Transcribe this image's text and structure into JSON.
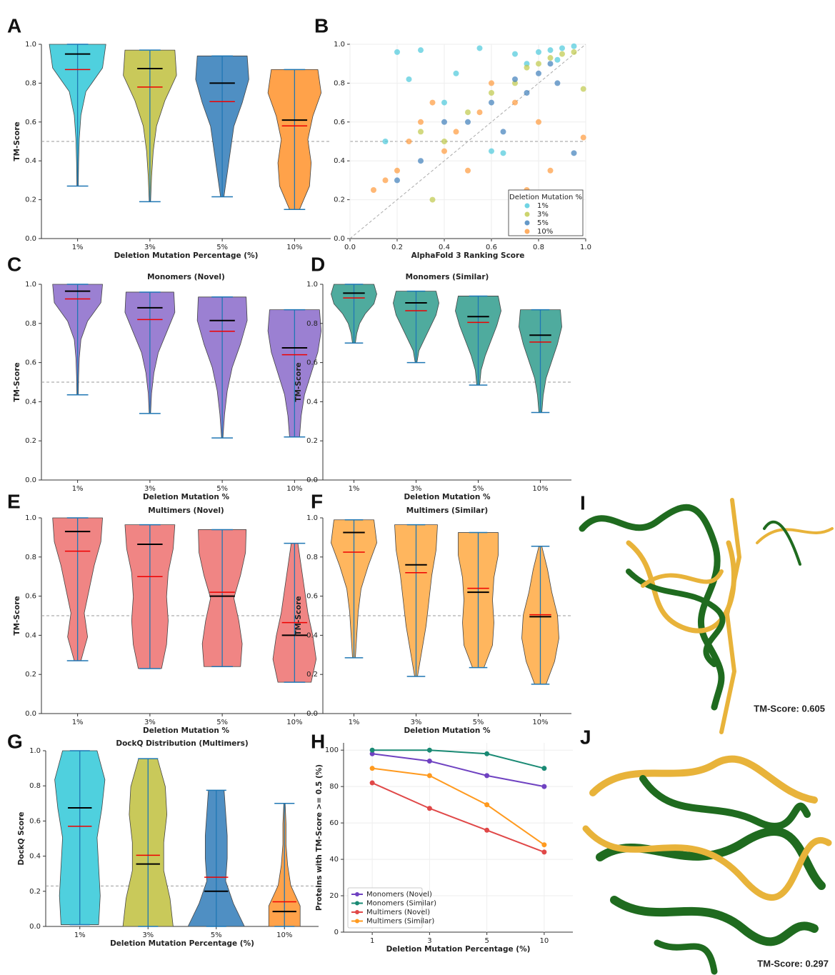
{
  "chart_data": [
    {
      "type": "violin",
      "panel_label": "A",
      "xlabel": "Deletion Mutation Percentage (%)",
      "ylabel": "TM-Score",
      "categories": [
        "1%",
        "3%",
        "5%",
        "10%"
      ],
      "colors": [
        "#4fd0de",
        "#c9c95a",
        "#4f8fc3",
        "#ffa24a"
      ],
      "min": [
        0.27,
        0.19,
        0.215,
        0.15
      ],
      "max": [
        1.0,
        0.97,
        0.94,
        0.87
      ],
      "median": [
        0.95,
        0.875,
        0.8,
        0.61
      ],
      "mean": [
        0.87,
        0.78,
        0.705,
        0.58
      ],
      "density": [
        [
          0.02,
          0.03,
          0.05,
          0.1,
          0.25,
          0.75,
          0.85
        ],
        [
          0.02,
          0.05,
          0.1,
          0.2,
          0.45,
          0.8,
          0.75
        ],
        [
          0.05,
          0.15,
          0.25,
          0.35,
          0.6,
          0.8,
          0.75
        ],
        [
          0.15,
          0.45,
          0.5,
          0.4,
          0.55,
          0.8,
          0.7
        ]
      ],
      "ylim": [
        0,
        1
      ],
      "yticks": [
        {
          "value": 0,
          "label": "0.0"
        },
        0.2,
        0.4,
        0.6,
        0.8,
        {
          "value": 1,
          "label": "1.0"
        }
      ],
      "hline": 0.5
    },
    {
      "type": "scatter",
      "panel_label": "B",
      "xlabel": "AlphaFold 3 Ranking Score",
      "legend_title": "Deletion Mutation %",
      "legend": "lower right",
      "grid": true,
      "hline": 0.5,
      "series": [
        {
          "name": "1%",
          "color": "#4cc9dc",
          "x": [
            0.9,
            0.85,
            0.95,
            0.8,
            0.7,
            0.55,
            0.3,
            0.2,
            0.6,
            0.65,
            0.4,
            0.45,
            0.75,
            0.88,
            0.15,
            0.25
          ],
          "y": [
            0.98,
            0.97,
            0.99,
            0.96,
            0.95,
            0.98,
            0.97,
            0.96,
            0.45,
            0.44,
            0.7,
            0.85,
            0.9,
            0.92,
            0.5,
            0.82
          ]
        },
        {
          "name": "3%",
          "color": "#bfc94a",
          "x": [
            0.95,
            0.9,
            0.85,
            0.8,
            0.75,
            0.7,
            0.6,
            0.5,
            0.35,
            0.99,
            0.4,
            0.3
          ],
          "y": [
            0.96,
            0.95,
            0.93,
            0.9,
            0.88,
            0.8,
            0.75,
            0.65,
            0.2,
            0.77,
            0.5,
            0.55
          ]
        },
        {
          "name": "5%",
          "color": "#3f7fba",
          "x": [
            0.85,
            0.8,
            0.75,
            0.7,
            0.6,
            0.5,
            0.4,
            0.3,
            0.2,
            0.95,
            0.88,
            0.65
          ],
          "y": [
            0.9,
            0.85,
            0.75,
            0.82,
            0.7,
            0.6,
            0.6,
            0.4,
            0.3,
            0.44,
            0.8,
            0.55
          ]
        },
        {
          "name": "10%",
          "color": "#ff9a3c",
          "x": [
            0.1,
            0.15,
            0.2,
            0.25,
            0.3,
            0.35,
            0.4,
            0.45,
            0.55,
            0.6,
            0.7,
            0.8,
            0.85,
            0.99,
            0.75,
            0.5
          ],
          "y": [
            0.25,
            0.3,
            0.35,
            0.5,
            0.6,
            0.7,
            0.45,
            0.55,
            0.65,
            0.8,
            0.7,
            0.6,
            0.35,
            0.52,
            0.25,
            0.35
          ]
        }
      ],
      "xlim": [
        0,
        1
      ],
      "xticks": [
        {
          "value": 0,
          "label": "0.0"
        },
        0.2,
        0.4,
        0.6,
        0.8,
        {
          "value": 1,
          "label": "1.0"
        }
      ],
      "ylim": [
        0,
        1
      ],
      "yticks": [
        {
          "value": 0,
          "label": "0.0"
        },
        0.2,
        0.4,
        0.6,
        0.8,
        {
          "value": 1,
          "label": "1.0"
        }
      ]
    },
    {
      "type": "violin",
      "panel_label": "C",
      "title": "Monomers (Novel)",
      "xlabel": "Deletion Mutation %",
      "ylabel": "TM-Score",
      "categories": [
        "1%",
        "3%",
        "5%",
        "10%"
      ],
      "color": "#9b80d2",
      "min": [
        0.435,
        0.34,
        0.215,
        0.22
      ],
      "max": [
        1.0,
        0.96,
        0.935,
        0.87
      ],
      "median": [
        0.965,
        0.88,
        0.815,
        0.675
      ],
      "mean": [
        0.925,
        0.82,
        0.76,
        0.64
      ],
      "density": [
        [
          0.02,
          0.03,
          0.05,
          0.1,
          0.3,
          0.7,
          0.75
        ],
        [
          0.02,
          0.05,
          0.12,
          0.25,
          0.5,
          0.75,
          0.72
        ],
        [
          0.02,
          0.07,
          0.15,
          0.3,
          0.55,
          0.75,
          0.72
        ],
        [
          0.15,
          0.2,
          0.3,
          0.5,
          0.7,
          0.8,
          0.75
        ]
      ],
      "ylim": [
        0,
        1
      ],
      "yticks": [
        {
          "value": 0,
          "label": "0.0"
        },
        0.2,
        0.4,
        0.6,
        0.8,
        {
          "value": 1,
          "label": "1.0"
        }
      ],
      "hline": 0.5
    },
    {
      "type": "violin",
      "panel_label": "D",
      "title": "Monomers (Similar)",
      "xlabel": "Deletion Mutation %",
      "ylabel": "TM-Score",
      "categories": [
        "1%",
        "3%",
        "5%",
        "10%"
      ],
      "color": "#4fab9e",
      "min": [
        0.7,
        0.6,
        0.485,
        0.345
      ],
      "max": [
        1.0,
        0.965,
        0.94,
        0.87
      ],
      "median": [
        0.955,
        0.905,
        0.835,
        0.74
      ],
      "mean": [
        0.93,
        0.865,
        0.805,
        0.705
      ],
      "density": [
        [
          0.05,
          0.1,
          0.2,
          0.4,
          0.7,
          0.8,
          0.7
        ],
        [
          0.03,
          0.1,
          0.3,
          0.5,
          0.7,
          0.8,
          0.7
        ],
        [
          0.05,
          0.1,
          0.25,
          0.45,
          0.65,
          0.8,
          0.7
        ],
        [
          0.05,
          0.1,
          0.2,
          0.4,
          0.6,
          0.75,
          0.7
        ]
      ],
      "ylim": [
        0,
        1
      ],
      "yticks": [
        {
          "value": 0,
          "label": "0.0"
        },
        0.2,
        0.4,
        0.6,
        0.8,
        {
          "value": 1,
          "label": "1.0"
        }
      ],
      "hline": 0.5
    },
    {
      "type": "violin",
      "panel_label": "E",
      "title": "Multimers (Novel)",
      "xlabel": "Deletion Mutation %",
      "ylabel": "TM-Score",
      "categories": [
        "1%",
        "3%",
        "5%",
        "10%"
      ],
      "color": "#f08584",
      "min": [
        0.27,
        0.23,
        0.24,
        0.16
      ],
      "max": [
        1.0,
        0.965,
        0.94,
        0.87
      ],
      "median": [
        0.93,
        0.865,
        0.6,
        0.4
      ],
      "mean": [
        0.83,
        0.7,
        0.62,
        0.465
      ],
      "density": [
        [
          0.1,
          0.3,
          0.2,
          0.35,
          0.5,
          0.7,
          0.75
        ],
        [
          0.35,
          0.5,
          0.55,
          0.5,
          0.55,
          0.7,
          0.75
        ],
        [
          0.55,
          0.6,
          0.5,
          0.35,
          0.55,
          0.7,
          0.72
        ],
        [
          0.5,
          0.65,
          0.55,
          0.4,
          0.3,
          0.2,
          0.1
        ]
      ],
      "ylim": [
        0,
        1
      ],
      "yticks": [
        {
          "value": 0,
          "label": "0.0"
        },
        0.2,
        0.4,
        0.6,
        0.8,
        {
          "value": 1,
          "label": "1.0"
        }
      ],
      "hline": 0.5
    },
    {
      "type": "violin",
      "panel_label": "F",
      "title": "Multimers (Similar)",
      "xlabel": "Deletion Mutation %",
      "ylabel": "TM-Score",
      "categories": [
        "1%",
        "3%",
        "5%",
        "10%"
      ],
      "color": "#ffb65e",
      "min": [
        0.285,
        0.19,
        0.235,
        0.15
      ],
      "max": [
        0.99,
        0.965,
        0.925,
        0.855
      ],
      "median": [
        0.925,
        0.76,
        0.62,
        0.495
      ],
      "mean": [
        0.825,
        0.72,
        0.64,
        0.505
      ],
      "density": [
        [
          0.05,
          0.1,
          0.15,
          0.25,
          0.5,
          0.8,
          0.7
        ],
        [
          0.05,
          0.2,
          0.35,
          0.45,
          0.55,
          0.7,
          0.75
        ],
        [
          0.2,
          0.5,
          0.55,
          0.5,
          0.55,
          0.7,
          0.7
        ],
        [
          0.2,
          0.5,
          0.65,
          0.6,
          0.4,
          0.25,
          0.05
        ]
      ],
      "ylim": [
        0,
        1
      ],
      "yticks": [
        {
          "value": 0,
          "label": "0.0"
        },
        0.2,
        0.4,
        0.6,
        0.8,
        {
          "value": 1,
          "label": "1.0"
        }
      ],
      "hline": 0.5
    },
    {
      "type": "violin",
      "panel_label": "G",
      "title": "DockQ Distribution (Multimers)",
      "xlabel": "Deletion Mutation Percentage (%)",
      "ylabel": "DockQ Score",
      "categories": [
        "1%",
        "3%",
        "5%",
        "10%"
      ],
      "colors": [
        "#4fd0de",
        "#c9c95a",
        "#4f8fc3",
        "#ffa24a"
      ],
      "min": [
        0.01,
        0.0,
        0.0,
        0.0
      ],
      "max": [
        1.0,
        0.955,
        0.775,
        0.7
      ],
      "median": [
        0.675,
        0.355,
        0.2,
        0.085
      ],
      "mean": [
        0.57,
        0.405,
        0.28,
        0.14
      ],
      "density": [
        [
          0.6,
          0.65,
          0.6,
          0.55,
          0.7,
          0.8,
          0.55
        ],
        [
          0.8,
          0.7,
          0.5,
          0.5,
          0.6,
          0.55,
          0.3
        ],
        [
          0.9,
          0.55,
          0.3,
          0.35,
          0.35,
          0.3,
          0.25
        ],
        [
          0.5,
          0.5,
          0.2,
          0.1,
          0.05,
          0.05,
          0.02
        ]
      ],
      "ylim": [
        0,
        1
      ],
      "yticks": [
        {
          "value": 0,
          "label": "0.0"
        },
        0.2,
        0.4,
        0.6,
        0.8,
        {
          "value": 1,
          "label": "1.0"
        }
      ],
      "hline": 0.23
    },
    {
      "type": "line",
      "panel_label": "H",
      "xlabel": "Deletion Mutation Percentage (%)",
      "ylabel": "Proteins with TM-Score >= 0.5 (%)",
      "legend": "lower left",
      "grid": true,
      "categories": [
        "1",
        "3",
        "5",
        "10"
      ],
      "series": [
        {
          "name": "Monomers (Novel)",
          "color": "#6f42c1",
          "values": [
            98,
            94,
            86,
            80
          ]
        },
        {
          "name": "Monomers (Similar)",
          "color": "#1a8a74",
          "values": [
            100,
            100,
            98,
            90
          ]
        },
        {
          "name": "Multimers (Novel)",
          "color": "#e04848",
          "values": [
            82,
            68,
            56,
            44
          ]
        },
        {
          "name": "Multimers (Similar)",
          "color": "#ff9a1f",
          "values": [
            90,
            86,
            70,
            48
          ]
        }
      ],
      "ylim": [
        0,
        104
      ],
      "yticks": [
        0,
        20,
        40,
        60,
        80,
        100
      ]
    }
  ],
  "images": [
    {
      "panel_label": "I",
      "caption": "TM-Score: 0.605"
    },
    {
      "panel_label": "J",
      "caption": "TM-Score: 0.297"
    }
  ]
}
